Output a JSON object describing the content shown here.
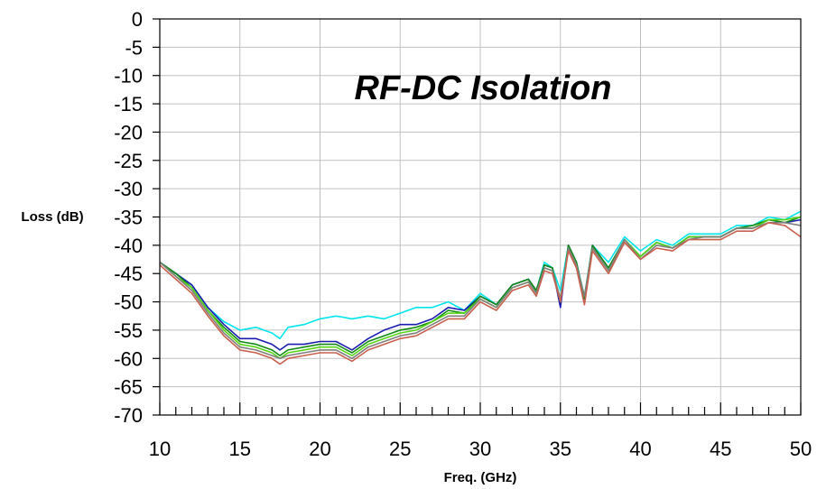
{
  "chart_data": {
    "type": "line",
    "title": "RF-DC Isolation",
    "xlabel": "Freq. (GHz)",
    "ylabel": "Loss (dB)",
    "xlim": [
      10,
      50
    ],
    "ylim": [
      -70,
      0
    ],
    "x_ticks": [
      10,
      15,
      20,
      25,
      30,
      35,
      40,
      45,
      50
    ],
    "x_tick_labels": [
      "10",
      "15",
      "20",
      "25",
      "30",
      "35",
      "40",
      "45",
      "50"
    ],
    "y_ticks": [
      0,
      -5,
      -10,
      -15,
      -20,
      -25,
      -30,
      -35,
      -40,
      -45,
      -50,
      -55,
      -60,
      -65,
      -70
    ],
    "y_tick_labels": [
      "0",
      "-5",
      "-10",
      "-15",
      "-20",
      "-25",
      "-30",
      "-35",
      "-40",
      "-45",
      "-50",
      "-55",
      "-60",
      "-65",
      "-70"
    ],
    "x_minor_step": 1,
    "grid": true,
    "x": [
      10,
      11,
      12,
      13,
      14,
      15,
      16,
      17,
      17.5,
      18,
      19,
      20,
      21,
      22,
      23,
      24,
      25,
      26,
      27,
      28,
      29,
      30,
      31,
      32,
      33,
      33.5,
      34,
      34.5,
      35,
      35.5,
      36,
      36.5,
      37,
      38,
      39,
      40,
      41,
      42,
      43,
      44,
      45,
      46,
      47,
      48,
      49,
      50
    ],
    "series": [
      {
        "color": "#00e5ee",
        "values": [
          -43,
          -45,
          -47,
          -51,
          -53.5,
          -55,
          -54.5,
          -55.5,
          -56.5,
          -54.5,
          -54,
          -53,
          -52.5,
          -53,
          -52.5,
          -53,
          -52,
          -51,
          -51,
          -50,
          -51.5,
          -48.5,
          -50.5,
          -47,
          -46,
          -48,
          -43,
          -44,
          -48,
          -40,
          -43,
          -49,
          -40,
          -43,
          -38.5,
          -41,
          -39,
          -40,
          -38,
          -38,
          -38,
          -36.5,
          -36.5,
          -35,
          -35.5,
          -34
        ]
      },
      {
        "color": "#1c1cb0",
        "values": [
          -43,
          -45,
          -47,
          -51,
          -54,
          -56.5,
          -56.5,
          -57.5,
          -58.5,
          -57.5,
          -57.5,
          -57,
          -57,
          -58.5,
          -56.5,
          -55,
          -54,
          -54,
          -53,
          -51,
          -51.5,
          -49,
          -50.5,
          -47,
          -46,
          -48,
          -43.5,
          -44,
          -51,
          -40,
          -43,
          -49.5,
          -40,
          -44,
          -39,
          -42,
          -39.5,
          -40.5,
          -38.5,
          -38.5,
          -38.5,
          -37,
          -37,
          -35.5,
          -36,
          -35.5
        ]
      },
      {
        "color": "#138a13",
        "values": [
          -43,
          -45,
          -47.5,
          -51.5,
          -54.5,
          -57,
          -57.5,
          -58.5,
          -59.5,
          -58.5,
          -58,
          -57.5,
          -57.5,
          -59,
          -57,
          -56,
          -55,
          -54.5,
          -53.5,
          -51.5,
          -52,
          -49,
          -50.5,
          -47,
          -46,
          -48,
          -43.5,
          -44,
          -50,
          -40,
          -43,
          -49.5,
          -40,
          -44,
          -39,
          -42,
          -39.5,
          -40.5,
          -38.5,
          -38.5,
          -38.5,
          -37,
          -36.5,
          -35.5,
          -36,
          -35
        ]
      },
      {
        "color": "#55d515",
        "values": [
          -43,
          -45.5,
          -47.5,
          -51.5,
          -55,
          -57.5,
          -58,
          -59,
          -60,
          -59,
          -58.5,
          -58,
          -58,
          -59.5,
          -57.5,
          -56.5,
          -55.5,
          -55,
          -53.5,
          -52,
          -52,
          -49.5,
          -51,
          -47.5,
          -46.5,
          -48.5,
          -44,
          -44.5,
          -49.5,
          -40.5,
          -43.5,
          -49,
          -40.5,
          -44.5,
          -39,
          -42,
          -39.5,
          -40.5,
          -38.5,
          -38.5,
          -38.5,
          -37,
          -37,
          -35.5,
          -35.5,
          -35
        ]
      },
      {
        "color": "#7f7f7f",
        "values": [
          -43,
          -45.5,
          -48,
          -52,
          -55.5,
          -58,
          -58.5,
          -59.5,
          -60,
          -59.5,
          -59,
          -58.5,
          -58.5,
          -60,
          -58,
          -57,
          -56,
          -55.5,
          -54,
          -52.5,
          -52.5,
          -49.5,
          -51,
          -47.5,
          -46.5,
          -48.5,
          -44,
          -44.5,
          -49.5,
          -40.5,
          -43.5,
          -49,
          -40.5,
          -44.5,
          -39,
          -42.5,
          -40,
          -40.5,
          -39,
          -38.5,
          -38.5,
          -37,
          -37,
          -36,
          -36,
          -36.5
        ]
      },
      {
        "color": "#c8604e",
        "values": [
          -43.5,
          -46,
          -48.5,
          -52.5,
          -56,
          -58.5,
          -59,
          -60,
          -61,
          -60,
          -59.5,
          -59,
          -59,
          -60.5,
          -58.5,
          -57.5,
          -56.5,
          -56,
          -54.5,
          -53,
          -53,
          -50,
          -51.5,
          -48,
          -47,
          -49,
          -44.5,
          -45,
          -50,
          -41,
          -44,
          -50.5,
          -41,
          -45,
          -39.5,
          -42.5,
          -40.5,
          -41,
          -39,
          -39,
          -39,
          -37.5,
          -37.5,
          -36,
          -36.5,
          -38.5
        ]
      }
    ]
  }
}
